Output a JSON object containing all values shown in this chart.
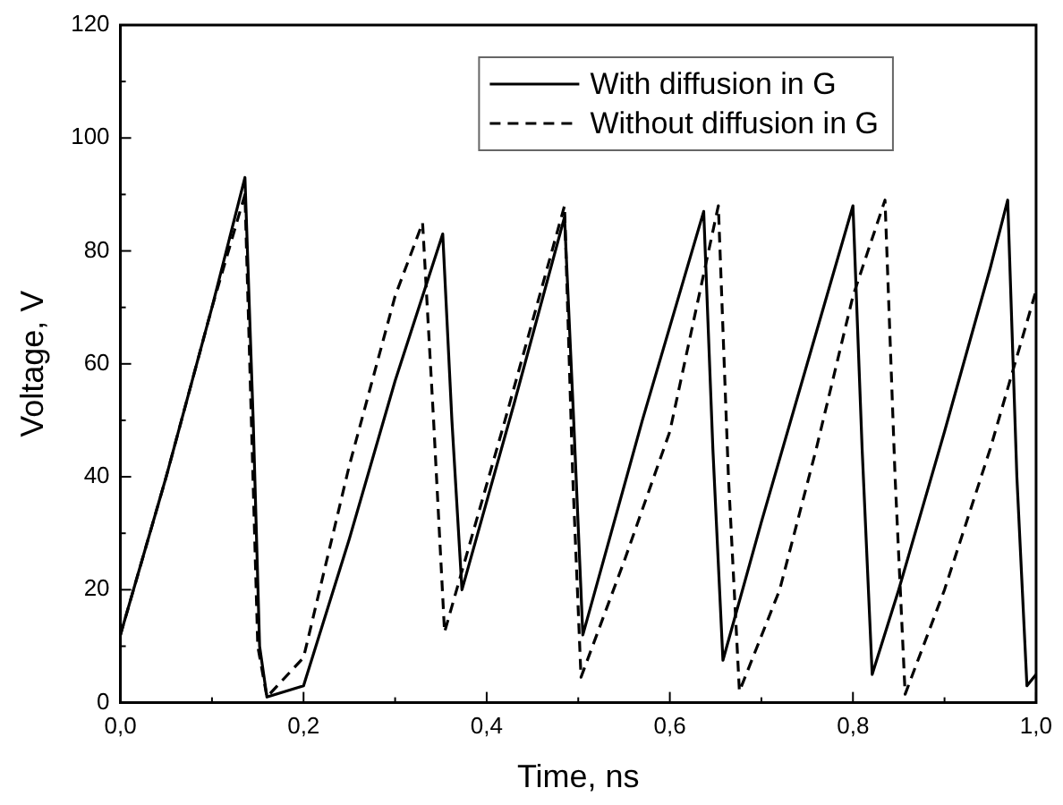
{
  "chart_data": {
    "type": "line",
    "xlabel": "Time, ns",
    "ylabel": "Voltage, V",
    "xlim": [
      0,
      1
    ],
    "ylim": [
      0,
      120
    ],
    "xticks": [
      {
        "value": 0,
        "label": "0,0"
      },
      {
        "value": 0.1,
        "label": null
      },
      {
        "value": 0.2,
        "label": "0,2"
      },
      {
        "value": 0.3,
        "label": null
      },
      {
        "value": 0.4,
        "label": "0,4"
      },
      {
        "value": 0.5,
        "label": null
      },
      {
        "value": 0.6,
        "label": "0,6"
      },
      {
        "value": 0.7,
        "label": null
      },
      {
        "value": 0.8,
        "label": "0,8"
      },
      {
        "value": 0.9,
        "label": null
      },
      {
        "value": 1,
        "label": "1,0"
      }
    ],
    "yticks": [
      0,
      {
        "value": 10,
        "label": null
      },
      20,
      {
        "value": 30,
        "label": null
      },
      40,
      {
        "value": 50,
        "label": null
      },
      60,
      {
        "value": 70,
        "label": null
      },
      80,
      {
        "value": 90,
        "label": null
      },
      100,
      {
        "value": 110,
        "label": null
      },
      120
    ],
    "grid": false,
    "legend": "top right",
    "marker": "none",
    "series": [
      {
        "name": "With diffusion in G",
        "color": "#000000",
        "line_style": "solid",
        "x": [
          0,
          0.05,
          0.1,
          0.136,
          0.145,
          0.152,
          0.16,
          0.2,
          0.25,
          0.3,
          0.352,
          0.362,
          0.373,
          0.43,
          0.485,
          0.495,
          0.505,
          0.57,
          0.637,
          0.647,
          0.658,
          0.7,
          0.75,
          0.8,
          0.81,
          0.821,
          0.85,
          0.9,
          0.95,
          0.969,
          0.979,
          0.99,
          1
        ],
        "values": [
          12,
          40,
          70,
          93,
          50,
          10,
          1,
          3,
          29,
          57,
          83,
          50,
          20,
          53,
          86,
          50,
          12,
          50,
          87,
          45,
          7.5,
          32,
          60,
          88,
          45,
          5,
          20,
          48,
          77,
          89,
          40,
          3,
          5
        ]
      },
      {
        "name": "Without diffusion in G",
        "color": "#000000",
        "line_style": "dashed",
        "x": [
          0,
          0.05,
          0.1,
          0.136,
          0.143,
          0.15,
          0.16,
          0.2,
          0.25,
          0.3,
          0.33,
          0.342,
          0.354,
          0.42,
          0.485,
          0.494,
          0.503,
          0.55,
          0.6,
          0.653,
          0.664,
          0.676,
          0.72,
          0.76,
          0.8,
          0.835,
          0.846,
          0.857,
          0.9,
          0.95,
          1
        ],
        "values": [
          12,
          40,
          70,
          90,
          50,
          10,
          1,
          8,
          42,
          72,
          85,
          50,
          12.5,
          50,
          88,
          40,
          4.5,
          25,
          48,
          88,
          40,
          2,
          20,
          45,
          72,
          89,
          40,
          1.5,
          20,
          45,
          73
        ]
      }
    ]
  }
}
